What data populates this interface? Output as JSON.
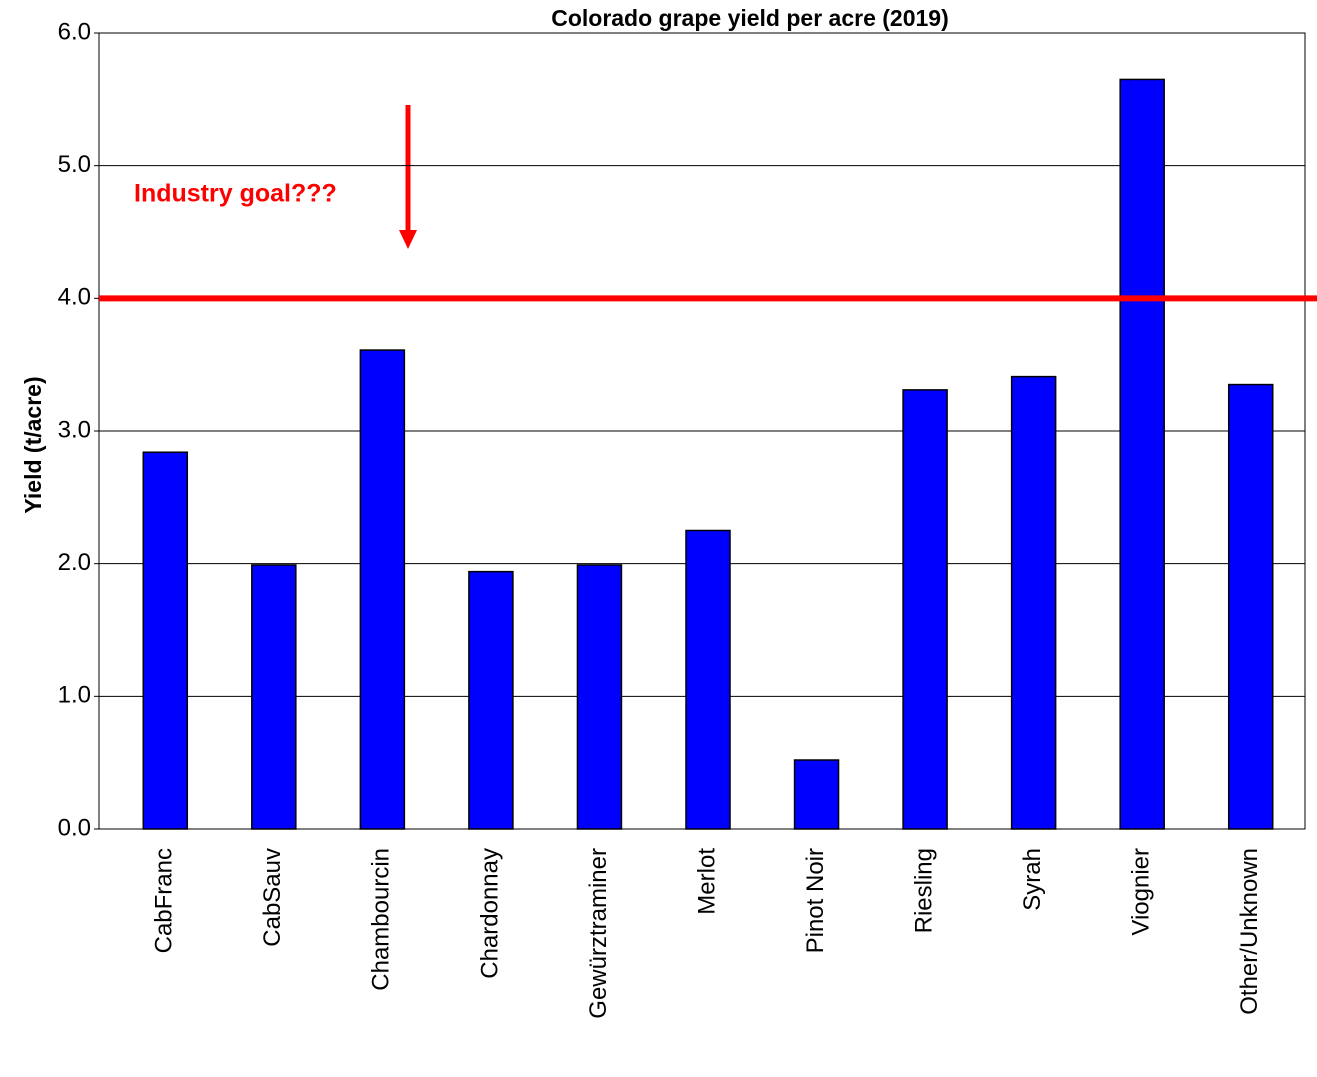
{
  "chart_data": {
    "type": "bar",
    "title": "Colorado grape yield per acre (2019)",
    "y_label": "Yield (t/acre)",
    "categories": [
      "CabFranc",
      "CabSauv",
      "Chambourcin",
      "Chardonnay",
      "Gewürztraminer",
      "Merlot",
      "Pinot Noir",
      "Riesling",
      "Syrah",
      "Viognier",
      "Other/Unknown"
    ],
    "values": [
      2.84,
      1.99,
      3.61,
      1.94,
      1.99,
      2.25,
      0.52,
      3.31,
      3.41,
      5.65,
      3.35
    ],
    "color": "#0000ff",
    "ylim": [
      0,
      6
    ],
    "yticks": [
      {
        "value": 0,
        "label": "0.0"
      },
      {
        "value": 1,
        "label": "1.0"
      },
      {
        "value": 2,
        "label": "2.0"
      },
      {
        "value": 3,
        "label": "3.0"
      },
      {
        "value": 4,
        "label": "4.0"
      },
      {
        "value": 5,
        "label": "5.0"
      },
      {
        "value": 6,
        "label": "6.0"
      }
    ],
    "grid": true,
    "reference_line": {
      "value": 4.0,
      "color": "#ff0000",
      "label": "Industry goal???"
    }
  }
}
